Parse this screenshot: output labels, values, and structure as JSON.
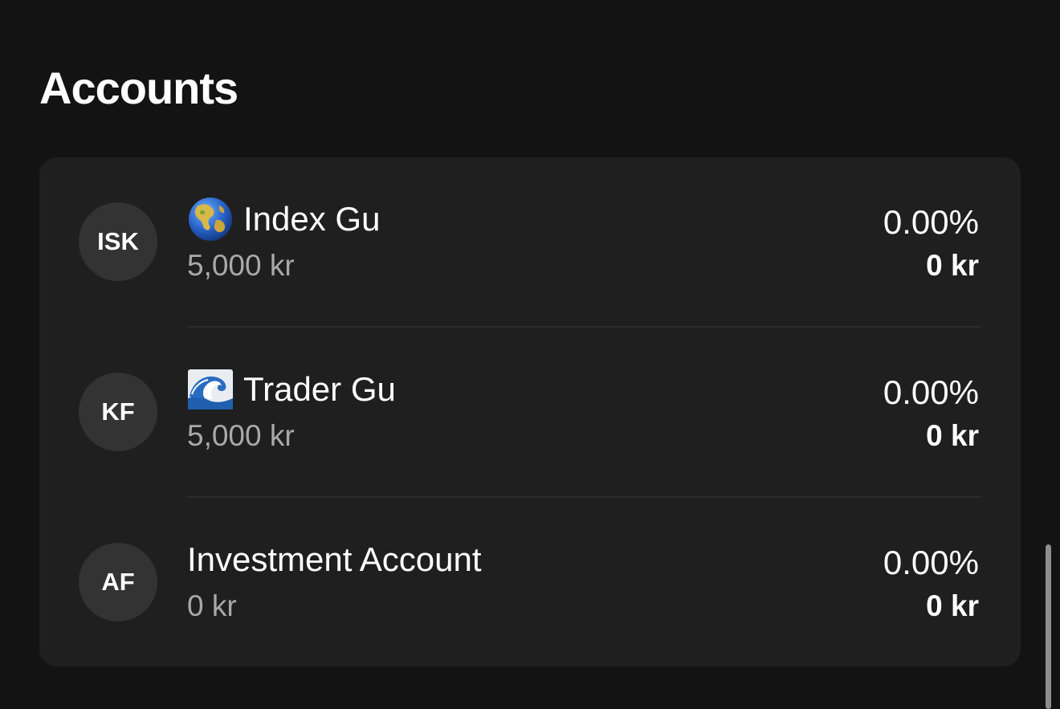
{
  "page": {
    "title": "Accounts"
  },
  "accounts": [
    {
      "avatar": "ISK",
      "icon": "globe-asia-icon",
      "name": "Index Gu",
      "balance": "5,000 kr",
      "return_pct": "0.00%",
      "return_amount": "0 kr"
    },
    {
      "avatar": "KF",
      "icon": "wave-icon",
      "name": "Trader Gu",
      "balance": "5,000 kr",
      "return_pct": "0.00%",
      "return_amount": "0 kr"
    },
    {
      "avatar": "AF",
      "icon": "",
      "name": "Investment Account",
      "balance": "0 kr",
      "return_pct": "0.00%",
      "return_amount": "0 kr"
    }
  ],
  "colors": {
    "background": "#131313",
    "card": "#1f1f1f",
    "avatar": "#333333",
    "secondary_text": "#a9a9a9",
    "divider": "#2c2c2c"
  }
}
